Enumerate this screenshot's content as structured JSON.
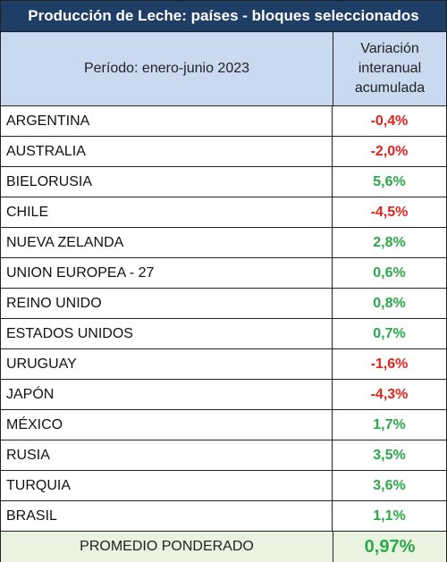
{
  "title": "Producción de Leche: países - bloques seleccionados",
  "header": {
    "period": "Período: enero-junio 2023",
    "variation_line1": "Variación",
    "variation_line2": "interanual",
    "variation_line3": "acumulada"
  },
  "rows": [
    {
      "country": "ARGENTINA",
      "value": "-0,4%",
      "sign": "neg"
    },
    {
      "country": "AUSTRALIA",
      "value": "-2,0%",
      "sign": "neg"
    },
    {
      "country": "BIELORUSIA",
      "value": "5,6%",
      "sign": "pos"
    },
    {
      "country": "CHILE",
      "value": "-4,5%",
      "sign": "neg"
    },
    {
      "country": "NUEVA ZELANDA",
      "value": "2,8%",
      "sign": "pos"
    },
    {
      "country": "UNION EUROPEA - 27",
      "value": "0,6%",
      "sign": "pos"
    },
    {
      "country": "REINO UNIDO",
      "value": "0,8%",
      "sign": "pos"
    },
    {
      "country": "ESTADOS UNIDOS",
      "value": "0,7%",
      "sign": "pos"
    },
    {
      "country": "URUGUAY",
      "value": "-1,6%",
      "sign": "neg"
    },
    {
      "country": "JAPÓN",
      "value": "-4,3%",
      "sign": "neg"
    },
    {
      "country": "MÉXICO",
      "value": "1,7%",
      "sign": "pos"
    },
    {
      "country": "RUSIA",
      "value": "3,5%",
      "sign": "pos"
    },
    {
      "country": "TURQUIA",
      "value": "3,6%",
      "sign": "pos"
    },
    {
      "country": "BRASIL",
      "value": "1,1%",
      "sign": "pos"
    }
  ],
  "footer": {
    "label": "PROMEDIO PONDERADO",
    "value": "0,97%"
  },
  "colors": {
    "title_bg": "#1f3e66",
    "header_bg": "#c9d9ef",
    "footer_bg": "#eaf3df",
    "negative": "#e0241c",
    "positive": "#2aa84a"
  }
}
